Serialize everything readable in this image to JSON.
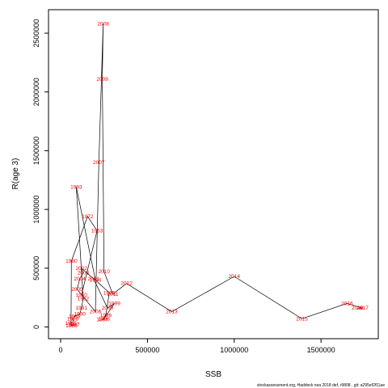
{
  "chart_data": {
    "type": "scatter",
    "xlabel": "SSB",
    "ylabel": "R(age 3)",
    "xlim": [
      -70000,
      1830000
    ],
    "ylim": [
      -100000,
      2700000
    ],
    "x_ticks": [
      0,
      500000,
      1000000,
      1500000
    ],
    "x_tick_labels": [
      "0",
      "500000",
      "1000000",
      "1500000"
    ],
    "y_ticks": [
      0,
      500000,
      1000000,
      1500000,
      2000000,
      2500000
    ],
    "y_tick_labels": [
      "0",
      "500000",
      "1000000",
      "1500000",
      "2000000",
      "2500000"
    ],
    "grid": false,
    "line_color": "#000000",
    "label_color": "#ff0000",
    "footer": "stockassessment.org, Haddock nea 2018 def, r9808 , git: a295ef2f11ae",
    "points": [
      {
        "year": "1950",
        "ssb": 120000,
        "rec": 270000
      },
      {
        "year": "1953",
        "ssb": 210000,
        "rec": 820000
      },
      {
        "year": "1972",
        "ssb": 155000,
        "rec": 940000
      },
      {
        "year": "1980",
        "ssb": 62000,
        "rec": 560000
      },
      {
        "year": "1985",
        "ssb": 60000,
        "rec": 30000
      },
      {
        "year": "1986",
        "ssb": 62000,
        "rec": 10000
      },
      {
        "year": "1987",
        "ssb": 75000,
        "rec": 20000
      },
      {
        "year": "1988",
        "ssb": 70000,
        "rec": 70000
      },
      {
        "year": "1989",
        "ssb": 80000,
        "rec": 90000
      },
      {
        "year": "1990",
        "ssb": 110000,
        "rec": 110000
      },
      {
        "year": "1991",
        "ssb": 120000,
        "rec": 160000
      },
      {
        "year": "1992",
        "ssb": 130000,
        "rec": 240000
      },
      {
        "year": "1993",
        "ssb": 90000,
        "rec": 1190000
      },
      {
        "year": "1994",
        "ssb": 200000,
        "rec": 400000
      },
      {
        "year": "1995",
        "ssb": 280000,
        "rec": 290000
      },
      {
        "year": "1996",
        "ssb": 260000,
        "rec": 100000
      },
      {
        "year": "1997",
        "ssb": 240000,
        "rec": 60000
      },
      {
        "year": "1998",
        "ssb": 250000,
        "rec": 70000
      },
      {
        "year": "1999",
        "ssb": 310000,
        "rec": 200000
      },
      {
        "year": "2000",
        "ssb": 270000,
        "rec": 160000
      },
      {
        "year": "2001",
        "ssb": 190000,
        "rec": 410000
      },
      {
        "year": "2002",
        "ssb": 120000,
        "rec": 500000
      },
      {
        "year": "2003",
        "ssb": 130000,
        "rec": 460000
      },
      {
        "year": "2004",
        "ssb": 110000,
        "rec": 410000
      },
      {
        "year": "2005",
        "ssb": 95000,
        "rec": 320000
      },
      {
        "year": "2006",
        "ssb": 200000,
        "rec": 130000
      },
      {
        "year": "2007",
        "ssb": 220000,
        "rec": 1400000
      },
      {
        "year": "2008",
        "ssb": 245000,
        "rec": 2580000
      },
      {
        "year": "2009",
        "ssb": 240000,
        "rec": 2110000
      },
      {
        "year": "2010",
        "ssb": 250000,
        "rec": 470000
      },
      {
        "year": "2011",
        "ssb": 300000,
        "rec": 280000
      },
      {
        "year": "2012",
        "ssb": 380000,
        "rec": 370000
      },
      {
        "year": "2013",
        "ssb": 640000,
        "rec": 130000
      },
      {
        "year": "2014",
        "ssb": 1000000,
        "rec": 430000
      },
      {
        "year": "2015",
        "ssb": 1390000,
        "rec": 70000
      },
      {
        "year": "2016",
        "ssb": 1650000,
        "rec": 200000
      },
      {
        "year": "2017",
        "ssb": 1740000,
        "rec": 160000
      },
      {
        "year": "2018",
        "ssb": 1710000,
        "rec": 160000
      }
    ]
  }
}
